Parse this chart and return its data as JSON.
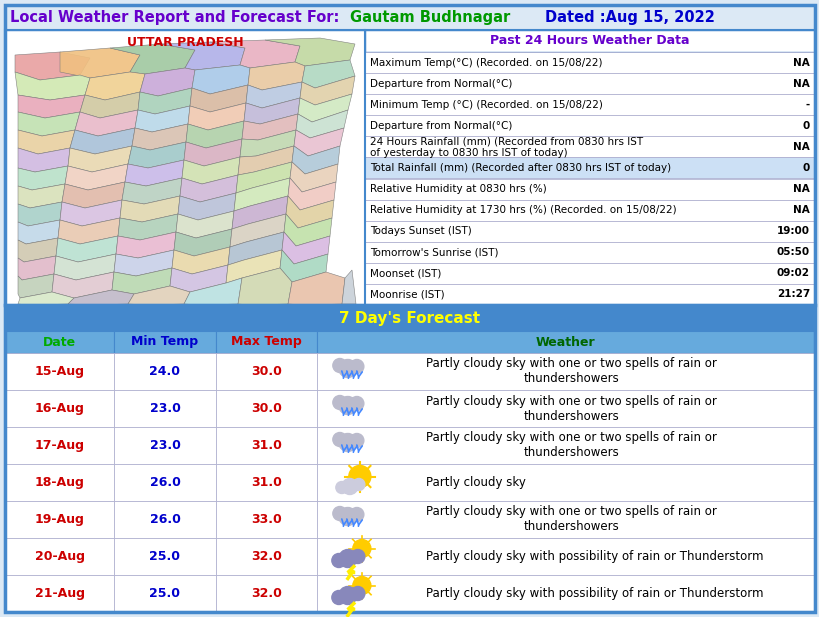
{
  "title": "Local Weather Report and Forecast For:",
  "location": "Gautam Budhnagar",
  "dated": "Dated :Aug 15, 2022",
  "background_color": "#dce9f5",
  "map_section_label": "UTTAR PRADESH",
  "past24_header": "Past 24 Hours Weather Data",
  "past24_rows": [
    [
      "Maximum Temp(°C) (Recorded. on 15/08/22)",
      "NA"
    ],
    [
      "Departure from Normal(°C)",
      "NA"
    ],
    [
      "Minimum Temp (°C) (Recorded. on 15/08/22)",
      "-"
    ],
    [
      "Departure from Normal(°C)",
      "0"
    ],
    [
      "24 Hours Rainfall (mm) (Recorded from 0830 hrs IST\nof yesterday to 0830 hrs IST of today)",
      "NA"
    ],
    [
      "Total Rainfall (mm) (Recorded after 0830 hrs IST of today)",
      "0"
    ],
    [
      "Relative Humidity at 0830 hrs (%)",
      "NA"
    ],
    [
      "Relative Humidity at 1730 hrs (%) (Recorded. on 15/08/22)",
      "NA"
    ],
    [
      "Todays Sunset (IST)",
      "19:00"
    ],
    [
      "Tomorrow's Sunrise (IST)",
      "05:50"
    ],
    [
      "Moonset (IST)",
      "09:02"
    ],
    [
      "Moonrise (IST)",
      "21:27"
    ]
  ],
  "past24_highlight_row": 5,
  "forecast_header": "7 Day's Forecast",
  "forecast_col_headers": [
    "Date",
    "Min Temp",
    "Max Temp",
    "Weather"
  ],
  "forecast_rows": [
    [
      "15-Aug",
      "24.0",
      "30.0",
      "Partly cloudy sky with one or two spells of rain or\nthundershowers",
      "rain"
    ],
    [
      "16-Aug",
      "23.0",
      "30.0",
      "Partly cloudy sky with one or two spells of rain or\nthundershowers",
      "rain"
    ],
    [
      "17-Aug",
      "23.0",
      "31.0",
      "Partly cloudy sky with one or two spells of rain or\nthundershowers",
      "rain"
    ],
    [
      "18-Aug",
      "26.0",
      "31.0",
      "Partly cloudy sky",
      "sun_cloud"
    ],
    [
      "19-Aug",
      "26.0",
      "33.0",
      "Partly cloudy sky with one or two spells of rain or\nthundershowers",
      "rain"
    ],
    [
      "20-Aug",
      "25.0",
      "32.0",
      "Partly cloudy sky with possibility of rain or Thunderstorm",
      "thunderstorm"
    ],
    [
      "21-Aug",
      "25.0",
      "32.0",
      "Partly cloudy sky with possibility of rain or Thunderstorm",
      "thunderstorm"
    ]
  ],
  "title_color": "#6600cc",
  "location_color": "#009900",
  "dated_color": "#0000cc",
  "map_label_color": "#cc0000",
  "past24_header_color": "#6600cc",
  "past24_row_text_color": "#000000",
  "past24_value_color": "#000000",
  "past24_alt_row_bg": "#cce0f5",
  "forecast_header_color": "#ffff00",
  "forecast_header_bg": "#4488cc",
  "forecast_col_header_bg": "#66aadd",
  "forecast_date_color": "#cc0000",
  "forecast_temp_color": "#0000cc",
  "forecast_col_date_color": "#00aa00",
  "forecast_col_mintemp_color": "#0000cc",
  "forecast_col_maxtemp_color": "#cc0000",
  "forecast_col_weather_color": "#006600",
  "forecast_weather_color": "#000000",
  "outer_border_color": "#4488cc",
  "table_border_color": "#aaaacc",
  "section_divider_color": "#4488cc"
}
